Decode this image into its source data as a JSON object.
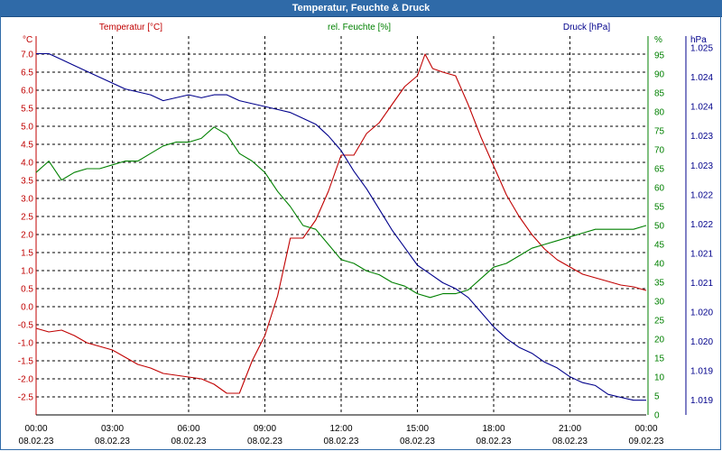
{
  "window": {
    "title": "Temperatur, Feuchte & Druck"
  },
  "colors": {
    "temperature": "#c00000",
    "humidity": "#008000",
    "pressure": "#00008b",
    "grid": "#000000",
    "titlebar": "#2f6aa8"
  },
  "chart_data": {
    "type": "line",
    "title": "Temperatur, Feuchte & Druck",
    "grid": true,
    "x_ticks": [
      {
        "time": "00:00",
        "date": "08.02.23"
      },
      {
        "time": "03:00",
        "date": "08.02.23"
      },
      {
        "time": "06:00",
        "date": "08.02.23"
      },
      {
        "time": "09:00",
        "date": "08.02.23"
      },
      {
        "time": "12:00",
        "date": "08.02.23"
      },
      {
        "time": "15:00",
        "date": "08.02.23"
      },
      {
        "time": "18:00",
        "date": "08.02.23"
      },
      {
        "time": "21:00",
        "date": "08.02.23"
      },
      {
        "time": "00:00",
        "date": "09.02.23"
      }
    ],
    "xlim_hours": [
      0,
      24
    ],
    "left_axis": {
      "label": "Temperatur [°C]",
      "unit": "°C",
      "ylim": [
        -3.0,
        7.5
      ],
      "ticks": [
        "7.0",
        "6.5",
        "6.0",
        "5.5",
        "5.0",
        "4.5",
        "4.0",
        "3.5",
        "3.0",
        "2.5",
        "2.0",
        "1.5",
        "1.0",
        "0.5",
        "0.0",
        "-0.5",
        "-1.0",
        "-1.5",
        "-2.0",
        "-2.5"
      ]
    },
    "mid_axis": {
      "label": "rel. Feuchte [%]",
      "unit": "%",
      "ylim": [
        0,
        100
      ],
      "ticks": [
        "95",
        "90",
        "85",
        "80",
        "75",
        "70",
        "65",
        "60",
        "55",
        "50",
        "45",
        "40",
        "35",
        "30",
        "25",
        "20",
        "15",
        "10",
        "5",
        "0"
      ]
    },
    "right_axis": {
      "label": "Druck [hPa]",
      "unit": "hPa",
      "ylim": [
        1018.85,
        1025.3
      ],
      "ticks": [
        {
          "value": 1025.1,
          "label": "1.025"
        },
        {
          "value": 1024.6,
          "label": "1.024"
        },
        {
          "value": 1024.1,
          "label": "1.024"
        },
        {
          "value": 1023.6,
          "label": "1.023"
        },
        {
          "value": 1023.1,
          "label": "1.023"
        },
        {
          "value": 1022.6,
          "label": "1.022"
        },
        {
          "value": 1022.1,
          "label": "1.022"
        },
        {
          "value": 1021.6,
          "label": "1.021"
        },
        {
          "value": 1021.1,
          "label": "1.021"
        },
        {
          "value": 1020.6,
          "label": "1.020"
        },
        {
          "value": 1020.1,
          "label": "1.020"
        },
        {
          "value": 1019.6,
          "label": "1.019"
        },
        {
          "value": 1019.1,
          "label": "1.019"
        }
      ]
    },
    "series": [
      {
        "name": "Temperatur [°C]",
        "axis": "left",
        "color": "#c00000",
        "x": [
          0,
          0.5,
          1,
          1.5,
          2,
          2.5,
          3,
          3.5,
          4,
          4.5,
          5,
          5.5,
          6,
          6.5,
          7,
          7.5,
          8,
          8.5,
          9,
          9.5,
          10,
          10.5,
          11,
          11.5,
          12,
          12.5,
          13,
          13.5,
          14,
          14.5,
          15,
          15.3,
          15.6,
          16,
          16.5,
          17,
          17.5,
          18,
          18.5,
          19,
          19.5,
          20,
          20.5,
          21,
          21.5,
          22,
          22.5,
          23,
          23.5,
          24
        ],
        "y": [
          -0.6,
          -0.7,
          -0.65,
          -0.8,
          -1.0,
          -1.1,
          -1.2,
          -1.4,
          -1.6,
          -1.7,
          -1.85,
          -1.9,
          -1.95,
          -2.0,
          -2.15,
          -2.4,
          -2.4,
          -1.5,
          -0.8,
          0.3,
          1.9,
          1.9,
          2.4,
          3.2,
          4.2,
          4.2,
          4.8,
          5.1,
          5.6,
          6.1,
          6.4,
          7.0,
          6.6,
          6.5,
          6.4,
          5.6,
          4.7,
          3.9,
          3.1,
          2.5,
          2.0,
          1.6,
          1.3,
          1.1,
          0.9,
          0.8,
          0.7,
          0.6,
          0.55,
          0.45
        ]
      },
      {
        "name": "rel. Feuchte [%]",
        "axis": "mid",
        "color": "#008000",
        "x": [
          0,
          0.5,
          1,
          1.5,
          2,
          2.5,
          3,
          3.5,
          4,
          4.5,
          5,
          5.5,
          6,
          6.5,
          7,
          7.5,
          8,
          8.5,
          9,
          9.5,
          10,
          10.5,
          11,
          11.5,
          12,
          12.5,
          13,
          13.5,
          14,
          14.5,
          15,
          15.5,
          16,
          16.5,
          17,
          17.5,
          18,
          18.5,
          19,
          19.5,
          20,
          20.5,
          21,
          21.5,
          22,
          22.5,
          23,
          23.5,
          24
        ],
        "y": [
          64,
          67,
          62,
          64,
          65,
          65,
          66,
          67,
          67,
          69,
          71,
          72,
          72,
          73,
          76,
          74,
          69,
          67,
          64,
          59,
          55,
          50,
          49,
          45,
          41,
          40,
          38,
          37,
          35,
          34,
          32,
          31,
          32,
          32,
          33,
          36,
          39,
          40,
          42,
          44,
          45,
          46,
          47,
          48,
          49,
          49,
          49,
          49,
          50
        ]
      },
      {
        "name": "Druck [hPa]",
        "axis": "right",
        "color": "#00008b",
        "x": [
          0,
          0.5,
          1,
          1.5,
          2,
          2.5,
          3,
          3.5,
          4,
          4.5,
          5,
          5.5,
          6,
          6.5,
          7,
          7.5,
          8,
          8.5,
          9,
          9.5,
          10,
          10.5,
          11,
          11.5,
          12,
          12.5,
          13,
          13.5,
          14,
          14.5,
          15,
          15.5,
          16,
          16.5,
          17,
          17.5,
          18,
          18.5,
          19,
          19.5,
          20,
          20.5,
          21,
          21.5,
          22,
          22.5,
          23,
          23.5,
          24
        ],
        "y": [
          1025.0,
          1025.0,
          1024.9,
          1024.8,
          1024.7,
          1024.6,
          1024.5,
          1024.4,
          1024.35,
          1024.3,
          1024.2,
          1024.25,
          1024.3,
          1024.25,
          1024.3,
          1024.3,
          1024.2,
          1024.15,
          1024.1,
          1024.05,
          1024.0,
          1023.9,
          1023.8,
          1023.6,
          1023.35,
          1023.0,
          1022.7,
          1022.35,
          1022.0,
          1021.7,
          1021.4,
          1021.25,
          1021.1,
          1021.0,
          1020.85,
          1020.6,
          1020.35,
          1020.15,
          1020.0,
          1019.9,
          1019.75,
          1019.65,
          1019.5,
          1019.4,
          1019.35,
          1019.2,
          1019.15,
          1019.1,
          1019.1
        ]
      }
    ]
  }
}
